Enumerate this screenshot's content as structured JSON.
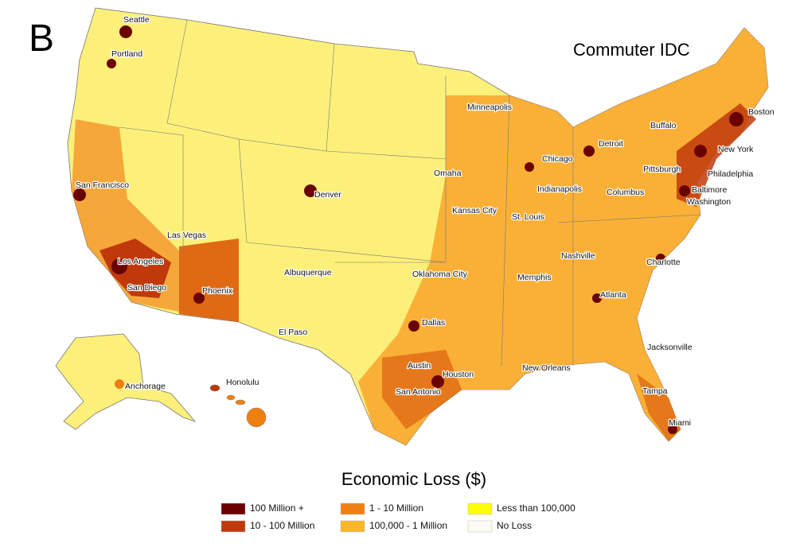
{
  "panel_label": "B",
  "title": "Commuter IDC",
  "cities": [
    "Seattle",
    "Portland",
    "San Francisco",
    "Las Vegas",
    "Los Angeles",
    "San Diego",
    "Phoenix",
    "Denver",
    "Albuquerque",
    "El Paso",
    "Anchorage",
    "Honolulu",
    "Minneapolis",
    "Omaha",
    "Kansas City",
    "Oklahoma City",
    "Dallas",
    "Austin",
    "San Antonio",
    "Houston",
    "St. Louis",
    "Memphis",
    "New Orleans",
    "Chicago",
    "Indianapolis",
    "Detroit",
    "Columbus",
    "Nashville",
    "Atlanta",
    "Jacksonville",
    "Tampa",
    "Miami",
    "Charlotte",
    "Pittsburgh",
    "Buffalo",
    "Boston",
    "New York",
    "Philadelphia",
    "Baltimore",
    "Washington"
  ],
  "legend": {
    "title": "Economic Loss ($)",
    "items": [
      {
        "label": "100 Million +",
        "color": "#6b0000"
      },
      {
        "label": "10 - 100 Million",
        "color": "#c0390a"
      },
      {
        "label": "1 - 10 Million",
        "color": "#f07f12"
      },
      {
        "label": "100,000 - 1 Million",
        "color": "#fbb62a"
      },
      {
        "label": "Less than 100,000",
        "color": "#ffff00"
      },
      {
        "label": "No Loss",
        "color": "#fcfcf4"
      }
    ]
  }
}
